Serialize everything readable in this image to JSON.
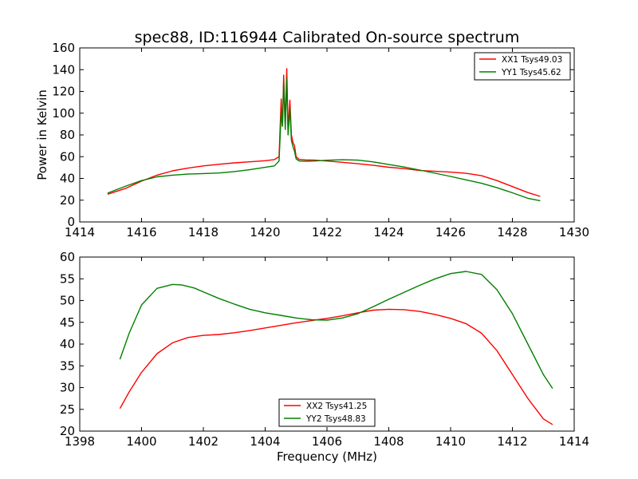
{
  "title": "spec88, ID:116944 Calibrated On-source spectrum",
  "chart_data": [
    {
      "type": "line",
      "ylabel": "Power in Kelvin",
      "xlabel": "",
      "xlim": [
        1414,
        1430
      ],
      "ylim": [
        0,
        160
      ],
      "xticks": [
        "1414",
        "1416",
        "1418",
        "1420",
        "1422",
        "1424",
        "1426",
        "1428",
        "1430"
      ],
      "yticks": [
        "0",
        "20",
        "40",
        "60",
        "80",
        "100",
        "120",
        "140",
        "160"
      ],
      "legend_position": "top-right",
      "series": [
        {
          "name": "XX1 Tsys49.03",
          "color": "#ff0000",
          "x": [
            1414.9,
            1415.5,
            1416.0,
            1416.5,
            1417.0,
            1417.5,
            1418.0,
            1418.5,
            1419.0,
            1419.5,
            1420.0,
            1420.3,
            1420.45,
            1420.52,
            1420.56,
            1420.6,
            1420.65,
            1420.7,
            1420.74,
            1420.8,
            1420.85,
            1420.9,
            1420.95,
            1421.0,
            1421.1,
            1421.3,
            1421.6,
            1422.0,
            1422.5,
            1423.0,
            1423.5,
            1424.0,
            1424.5,
            1425.0,
            1425.5,
            1426.0,
            1426.5,
            1427.0,
            1427.5,
            1428.0,
            1428.5,
            1428.9
          ],
          "y": [
            25.5,
            31,
            37.5,
            43,
            47,
            49.5,
            51.5,
            53,
            54.3,
            55.3,
            56.3,
            57.3,
            60,
            113,
            88,
            135,
            90,
            141,
            85,
            112,
            80,
            73,
            70,
            60,
            57.5,
            57,
            56.8,
            56,
            54.8,
            53.5,
            52,
            50.3,
            49,
            47.3,
            46.5,
            45.8,
            44.7,
            42.5,
            38,
            32.5,
            27,
            23.5
          ]
        },
        {
          "name": "YY1 Tsys45.62",
          "color": "#008000",
          "x": [
            1414.9,
            1415.5,
            1416.0,
            1416.5,
            1417.0,
            1417.5,
            1418.0,
            1418.5,
            1419.0,
            1419.5,
            1420.0,
            1420.3,
            1420.45,
            1420.52,
            1420.56,
            1420.6,
            1420.65,
            1420.7,
            1420.74,
            1420.8,
            1420.85,
            1420.9,
            1420.95,
            1421.0,
            1421.1,
            1421.3,
            1421.6,
            1422.0,
            1422.5,
            1423.0,
            1423.5,
            1424.0,
            1424.5,
            1425.0,
            1425.5,
            1426.0,
            1426.5,
            1427.0,
            1427.5,
            1428.0,
            1428.5,
            1428.9
          ],
          "y": [
            26.5,
            33,
            38,
            41.5,
            43,
            44,
            44.5,
            45,
            46.3,
            48,
            50.2,
            51.5,
            56,
            100,
            88,
            128,
            85,
            132,
            80,
            104,
            75,
            69,
            65,
            58,
            56,
            55.8,
            56,
            56.7,
            57.2,
            56.8,
            55.2,
            52.8,
            50.5,
            47.7,
            44.8,
            41.8,
            38.7,
            35.5,
            31.5,
            26.8,
            21.7,
            19.5
          ]
        }
      ]
    },
    {
      "type": "line",
      "ylabel": "",
      "xlabel": "Frequency (MHz)",
      "xlim": [
        1398,
        1414
      ],
      "ylim": [
        20,
        60
      ],
      "xticks": [
        "1398",
        "1400",
        "1402",
        "1404",
        "1406",
        "1408",
        "1410",
        "1412",
        "1414"
      ],
      "yticks": [
        "20",
        "25",
        "30",
        "35",
        "40",
        "45",
        "50",
        "55",
        "60"
      ],
      "legend_position": "bottom-center",
      "series": [
        {
          "name": "XX2 Tsys41.25",
          "color": "#ff0000",
          "x": [
            1399.3,
            1399.6,
            1400.0,
            1400.5,
            1401.0,
            1401.5,
            1402.0,
            1402.5,
            1403.0,
            1403.5,
            1404.0,
            1404.5,
            1405.0,
            1405.5,
            1406.0,
            1406.5,
            1407.0,
            1407.5,
            1408.0,
            1408.5,
            1409.0,
            1409.5,
            1410.0,
            1410.5,
            1411.0,
            1411.5,
            1412.0,
            1412.5,
            1413.0,
            1413.3
          ],
          "y": [
            25.2,
            29,
            33.5,
            37.8,
            40.3,
            41.5,
            42,
            42.2,
            42.6,
            43.1,
            43.7,
            44.3,
            44.9,
            45.4,
            45.9,
            46.5,
            47.2,
            47.8,
            48,
            47.9,
            47.5,
            46.8,
            45.9,
            44.7,
            42.5,
            38.5,
            33,
            27.5,
            22.8,
            21.5
          ]
        },
        {
          "name": "YY2 Tsys48.83",
          "color": "#008000",
          "x": [
            1399.3,
            1399.6,
            1400.0,
            1400.5,
            1401.0,
            1401.3,
            1401.7,
            1402.0,
            1402.5,
            1403.0,
            1403.5,
            1404.0,
            1404.5,
            1405.0,
            1405.5,
            1406.0,
            1406.5,
            1407.0,
            1407.5,
            1408.0,
            1408.5,
            1409.0,
            1409.5,
            1410.0,
            1410.5,
            1411.0,
            1411.5,
            1412.0,
            1412.5,
            1413.0,
            1413.3
          ],
          "y": [
            36.5,
            42.5,
            49,
            52.8,
            53.7,
            53.6,
            52.9,
            52,
            50.5,
            49.2,
            48,
            47.2,
            46.6,
            46,
            45.6,
            45.5,
            46,
            47,
            48.6,
            50.3,
            51.9,
            53.5,
            55,
            56.2,
            56.7,
            56,
            52.5,
            47,
            40,
            33,
            29.8
          ]
        }
      ]
    }
  ]
}
